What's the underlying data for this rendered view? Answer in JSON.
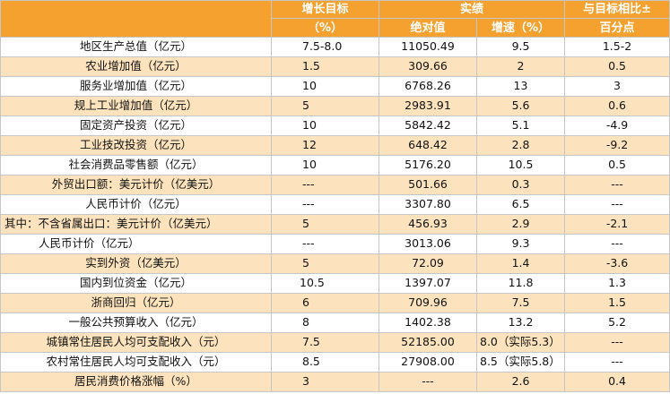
{
  "header": {
    "target_growth": "增长目标",
    "target_unit": "（%）",
    "actual": "实绩",
    "absolute": "绝对值",
    "speed": "增速（%）",
    "vs_target_line1": "与目标相比±",
    "vs_target_line2": "百分点"
  },
  "rows": [
    {
      "label": "地区生产总值（亿元）",
      "target": "7.5-8.0",
      "absolute": "11050.49",
      "speed": "9.5",
      "diff": "1.5-2"
    },
    {
      "label": "农业增加值（亿元）",
      "target": "1.5",
      "absolute": "309.66",
      "speed": "2",
      "diff": "0.5"
    },
    {
      "label": "服务业增加值（亿元）",
      "target": "10",
      "absolute": "6768.26",
      "speed": "13",
      "diff": "3"
    },
    {
      "label": "规上工业增加值（亿元）",
      "target": "5",
      "absolute": "2983.91",
      "speed": "5.6",
      "diff": "0.6"
    },
    {
      "label": "固定资产投资（亿元）",
      "target": "10",
      "absolute": "5842.42",
      "speed": "5.1",
      "diff": "-4.9"
    },
    {
      "label": "工业技改投资（亿元）",
      "target": "12",
      "absolute": "648.42",
      "speed": "2.8",
      "diff": "-9.2"
    },
    {
      "label": "社会消费品零售额（亿元）",
      "target": "10",
      "absolute": "5176.20",
      "speed": "10.5",
      "diff": "0.5"
    },
    {
      "label": "外贸出口额：美元计价（亿美元）",
      "target": "---",
      "absolute": "501.66",
      "speed": "0.3",
      "diff": "---"
    },
    {
      "label": "人民币计价（亿元）",
      "target": "---",
      "absolute": "3307.80",
      "speed": "6.5",
      "diff": "---"
    },
    {
      "label": "其中：不含省属出口：美元计价（亿美元）",
      "target": "5",
      "absolute": "456.93",
      "speed": "2.9",
      "diff": "-2.1"
    },
    {
      "label": "人民币计价（亿元）",
      "target": "---",
      "absolute": "3013.06",
      "speed": "9.3",
      "diff": "---"
    },
    {
      "label": "实到外资（亿美元）",
      "target": "5",
      "absolute": "72.09",
      "speed": "1.4",
      "diff": "-3.6"
    },
    {
      "label": "国内到位资金（亿元）",
      "target": "10.5",
      "absolute": "1397.07",
      "speed": "11.8",
      "diff": "1.3"
    },
    {
      "label": "浙商回归（亿元）",
      "target": "6",
      "absolute": "709.96",
      "speed": "7.5",
      "diff": "1.5"
    },
    {
      "label": "一般公共预算收入（亿元）",
      "target": "8",
      "absolute": "1402.38",
      "speed": "13.2",
      "diff": "5.2"
    },
    {
      "label": "城镇常住居民人均可支配收入（元）",
      "target": "7.5",
      "absolute": "52185.00",
      "speed": "8.0（实际5.3）",
      "diff": "---"
    },
    {
      "label": "农村常住居民人均可支配收入（元）",
      "target": "8.5",
      "absolute": "27908.00",
      "speed": "8.5（实际5.8）",
      "diff": "---"
    },
    {
      "label": "居民消费价格涨幅（%）",
      "target": "3",
      "absolute": "---",
      "speed": "2.6",
      "diff": "0.4"
    }
  ]
}
